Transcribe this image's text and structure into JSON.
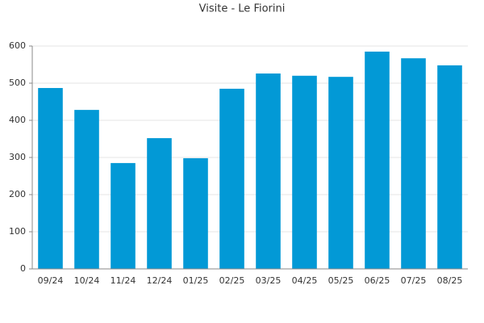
{
  "chart_data": {
    "type": "bar",
    "title": "Visite - Le Fiorini",
    "categories": [
      "09/24",
      "10/24",
      "11/24",
      "12/24",
      "01/25",
      "02/25",
      "03/25",
      "04/25",
      "05/25",
      "06/25",
      "07/25",
      "08/25"
    ],
    "values": [
      487,
      428,
      285,
      352,
      298,
      485,
      526,
      520,
      517,
      585,
      567,
      548
    ],
    "color": "#0299d6",
    "ylim": [
      0,
      600
    ],
    "yticks": [
      0,
      100,
      200,
      300,
      400,
      500,
      600
    ],
    "grid": true
  }
}
